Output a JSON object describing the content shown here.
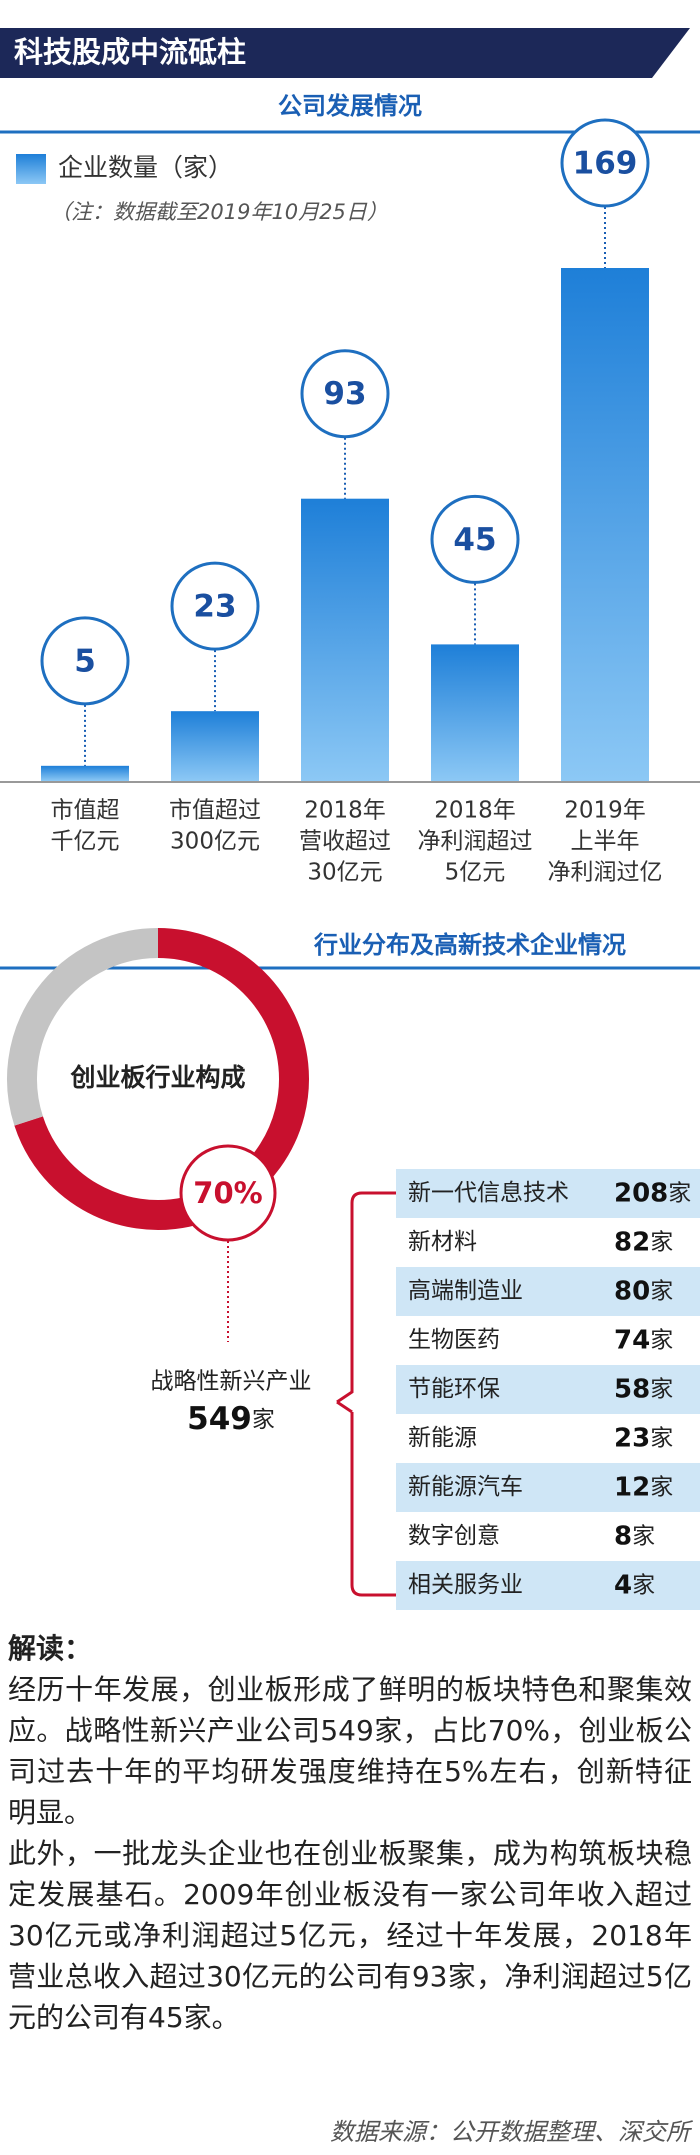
{
  "header": {
    "title": "科技股成中流砥柱"
  },
  "chart_data": [
    {
      "type": "bar",
      "title": "公司发展情况",
      "legend": "企业数量（家）",
      "note": "（注：数据截至2019年10月25日）",
      "categories": [
        [
          "市值超",
          "千亿元"
        ],
        [
          "市值超过",
          "300亿元"
        ],
        [
          "2018年",
          "营收超过",
          "30亿元"
        ],
        [
          "2018年",
          "净利润超过",
          "5亿元"
        ],
        [
          "2019年",
          "上半年",
          "净利润过亿"
        ]
      ],
      "values": [
        5,
        23,
        93,
        45,
        169
      ],
      "color": "#1e7fd8",
      "ylim": [
        0,
        169
      ]
    },
    {
      "type": "pie",
      "title": "行业分布及高新技术企业情况",
      "center_label": "创业板行业构成",
      "values": [
        70,
        30
      ],
      "value_labels": [
        "70%",
        null
      ],
      "colors": [
        "#c8102e",
        "#c4c4c4"
      ],
      "subtotal": {
        "label": "战略性新兴产业",
        "value": 549,
        "unit": "家"
      },
      "table": {
        "unit": "家",
        "rows": [
          [
            "新一代信息技术",
            208
          ],
          [
            "新材料",
            82
          ],
          [
            "高端制造业",
            80
          ],
          [
            "生物医药",
            74
          ],
          [
            "节能环保",
            58
          ],
          [
            "新能源",
            23
          ],
          [
            "新能源汽车",
            12
          ],
          [
            "数字创意",
            8
          ],
          [
            "相关服务业",
            4
          ]
        ]
      }
    }
  ],
  "commentary": {
    "heading": "解读：",
    "paragraphs": [
      "经历十年发展，创业板形成了鲜明的板块特色和聚集效应。战略性新兴产业公司549家，占比70%，创业板公司过去十年的平均研发强度维持在5%左右，创新特征明显。",
      "此外，一批龙头企业也在创业板聚集，成为构筑板块稳定发展基石。2009年创业板没有一家公司年收入超过30亿元或净利润超过5亿元，经过十年发展，2018年营业总收入超过30亿元的公司有93家，净利润超过5亿元的公司有45家。"
    ]
  },
  "source": "数据来源：公开数据整理、深交所"
}
